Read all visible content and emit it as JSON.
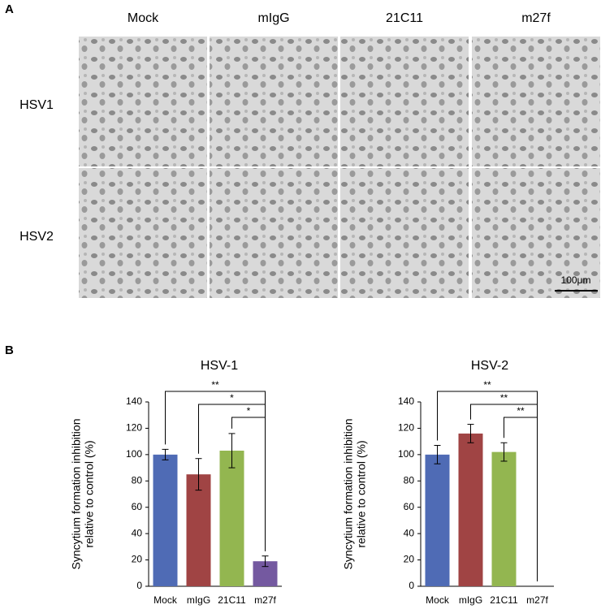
{
  "panel_a": {
    "label": "A",
    "columns": [
      "Mock",
      "mIgG",
      "21C11",
      "m27f"
    ],
    "rows": [
      "HSV1",
      "HSV2"
    ],
    "scale_bar": "100μm"
  },
  "panel_b": {
    "label": "B"
  },
  "chart_data": [
    {
      "type": "bar",
      "title": "HSV-1",
      "y_label": [
        "Syncytium formation inhibition",
        "relative to control (%)"
      ],
      "categories": [
        "Mock",
        "mIgG",
        "21C11",
        "m27f"
      ],
      "values": [
        100,
        85,
        103,
        19
      ],
      "errors": [
        4,
        12,
        13,
        4
      ],
      "colors": [
        "#4f6bb5",
        "#a04444",
        "#93b650",
        "#7459a0"
      ],
      "ylim": [
        0,
        140
      ],
      "yticks": [
        0,
        20,
        40,
        60,
        80,
        100,
        120,
        140
      ],
      "significance": [
        {
          "from": 0,
          "to": 3,
          "label": "**"
        },
        {
          "from": 1,
          "to": 3,
          "label": "*"
        },
        {
          "from": 2,
          "to": 3,
          "label": "*"
        }
      ]
    },
    {
      "type": "bar",
      "title": "HSV-2",
      "y_label": [
        "Syncytium formation inhibition",
        "relative to control (%)"
      ],
      "categories": [
        "Mock",
        "mIgG",
        "21C11",
        "m27f"
      ],
      "values": [
        100,
        116,
        102,
        0
      ],
      "errors": [
        7,
        7,
        7,
        0
      ],
      "colors": [
        "#4f6bb5",
        "#a04444",
        "#93b650",
        "#7459a0"
      ],
      "ylim": [
        0,
        140
      ],
      "yticks": [
        0,
        20,
        40,
        60,
        80,
        100,
        120,
        140
      ],
      "significance": [
        {
          "from": 0,
          "to": 3,
          "label": "**"
        },
        {
          "from": 1,
          "to": 3,
          "label": "**"
        },
        {
          "from": 2,
          "to": 3,
          "label": "**"
        }
      ]
    }
  ]
}
